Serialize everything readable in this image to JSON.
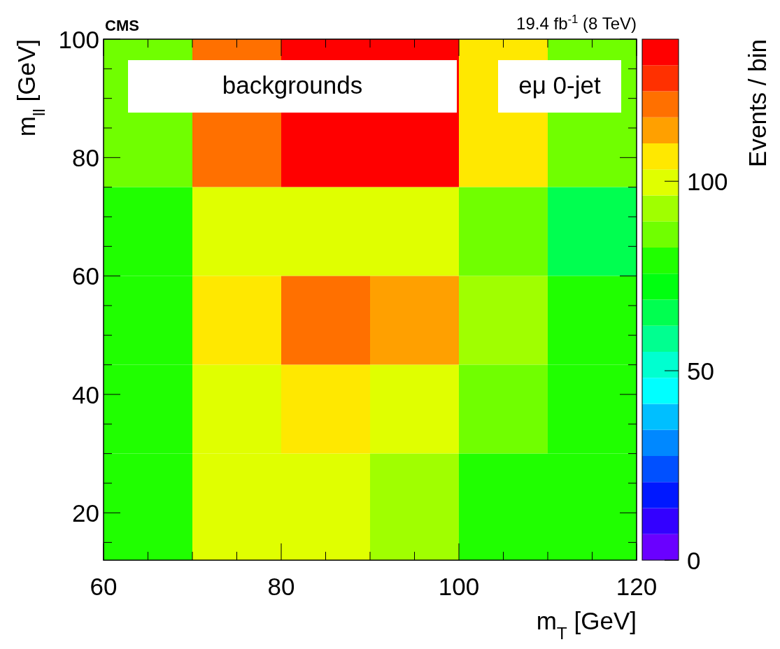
{
  "chart_data": {
    "type": "heatmap",
    "title": "CMS",
    "subtitle": "19.4 fb$^{-1}$ (8 TeV)",
    "xlabel": "m$_{T}$ [GeV]",
    "ylabel": "m$_{ll}$ [GeV]",
    "clabel": "Events / bin",
    "annotations": [
      "backgrounds",
      "eμ 0-jet"
    ],
    "x": [
      65,
      75,
      85,
      95,
      105,
      115
    ],
    "y": [
      87.5,
      67.5,
      52.5,
      37.5,
      21
    ],
    "cells": [
      [
        86,
        120,
        134,
        134,
        107,
        86
      ],
      [
        79,
        100,
        100,
        100,
        86,
        65
      ],
      [
        79,
        107,
        120,
        113,
        93,
        79
      ],
      [
        79,
        100,
        107,
        100,
        86,
        79
      ],
      [
        79,
        100,
        100,
        93,
        79,
        79
      ]
    ],
    "xlim": [
      60,
      120
    ],
    "ylim": [
      12,
      100
    ],
    "xticks": [
      60,
      {
        "value": 65,
        "label": null
      },
      {
        "value": 70,
        "label": null
      },
      {
        "value": 75,
        "label": null
      },
      80,
      {
        "value": 85,
        "label": null
      },
      {
        "value": 90,
        "label": null
      },
      {
        "value": 95,
        "label": null
      },
      100,
      {
        "value": 105,
        "label": null
      },
      {
        "value": 110,
        "label": null
      },
      {
        "value": 115,
        "label": null
      },
      120
    ],
    "yticks": [
      {
        "value": 15,
        "label": null
      },
      20,
      {
        "value": 25,
        "label": null
      },
      {
        "value": 30,
        "label": null
      },
      {
        "value": 35,
        "label": null
      },
      40,
      {
        "value": 45,
        "label": null
      },
      {
        "value": 50,
        "label": null
      },
      {
        "value": 55,
        "label": null
      },
      60,
      {
        "value": 65,
        "label": null
      },
      {
        "value": 70,
        "label": null
      },
      {
        "value": 75,
        "label": null
      },
      80,
      {
        "value": 85,
        "label": null
      },
      {
        "value": 90,
        "label": null
      },
      {
        "value": 95,
        "label": null
      },
      100
    ],
    "clim": [
      0,
      137.5
    ],
    "cticks": [
      0,
      50,
      100
    ],
    "grid": false
  }
}
